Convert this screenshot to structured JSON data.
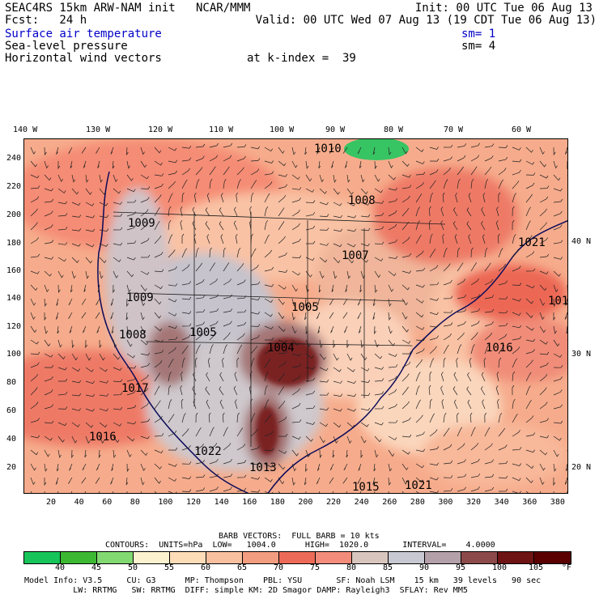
{
  "header": {
    "line1_left": "SEAC4RS 15km ARW-NAM init   NCAR/MMM",
    "line1_right": "Init: 00 UTC Tue 06 Aug 13",
    "line2_left": "Fcst:   24 h",
    "line2_right": "Valid: 00 UTC Wed 07 Aug 13 (19 CDT Tue 06 Aug 13)",
    "field1": "Surface air temperature",
    "field1_sm": "sm= 1",
    "field2": "Sea-level pressure",
    "field2_sm": "sm= 4",
    "field3": "Horizontal wind vectors",
    "field3_k": "at k-index =  39"
  },
  "axes": {
    "top_labels": [
      "140 W",
      "130 W",
      "120 W",
      "110 W",
      "100 W",
      "90 W",
      "80 W",
      "70 W",
      "60 W"
    ],
    "left_labels": [
      "240",
      "220",
      "200",
      "180",
      "160",
      "140",
      "120",
      "100",
      "80",
      "60",
      "40",
      "20"
    ],
    "right_labels": [
      "40 N",
      "30 N",
      "20 N"
    ],
    "bottom_labels": [
      "20",
      "40",
      "60",
      "80",
      "100",
      "120",
      "140",
      "160",
      "180",
      "200",
      "220",
      "240",
      "260",
      "280",
      "300",
      "320",
      "340",
      "360",
      "380"
    ]
  },
  "isobars": [
    {
      "label": "1010",
      "color": "#000"
    },
    {
      "label": "1008",
      "color": "#000"
    },
    {
      "label": "1009",
      "color": "#000"
    },
    {
      "label": "1007",
      "color": "#000"
    },
    {
      "label": "1021",
      "color": "#000"
    },
    {
      "label": "1009",
      "color": "#000"
    },
    {
      "label": "1005",
      "color": "#000"
    },
    {
      "label": "1008",
      "color": "#000"
    },
    {
      "label": "1005",
      "color": "#000"
    },
    {
      "label": "1004",
      "color": "#000"
    },
    {
      "label": "1017",
      "color": "#000"
    },
    {
      "label": "1016",
      "color": "#000"
    },
    {
      "label": "1016",
      "color": "#000"
    },
    {
      "label": "1022",
      "color": "#000"
    },
    {
      "label": "1013",
      "color": "#000"
    },
    {
      "label": "1015",
      "color": "#000"
    },
    {
      "label": "1021",
      "color": "#000"
    },
    {
      "label": "101",
      "color": "#000"
    }
  ],
  "footer": {
    "barb_vectors": "BARB VECTORS:  FULL BARB = 10 kts",
    "contours": "CONTOURS:  UNITS=hPa  LOW=   1004.0      HIGH=  1020.0       INTERVAL=    4.0000",
    "colorbar_labels": [
      "40",
      "45",
      "50",
      "55",
      "60",
      "65",
      "70",
      "75",
      "80",
      "85",
      "90",
      "95",
      "100",
      "105"
    ],
    "colorbar_unit": "°F",
    "colorbar_colors": [
      "#17c45a",
      "#3cb832",
      "#82d972",
      "#fdf2d0",
      "#fddcb8",
      "#f9c0a0",
      "#f29c80",
      "#ec6a58",
      "#f48c7c",
      "#d8c6be",
      "#c8c8d2",
      "#b4a0a8",
      "#8c4a4a",
      "#6e1414",
      "#5a0000"
    ],
    "model_line1": "Model Info: V3.5     CU: G3      MP: Thompson    PBL: YSU       SF: Noah LSM    15 km   39 levels   90 sec",
    "model_line2": "          LW: RRTMG   SW: RRTMG  DIFF: simple KM: 2D Smagor DAMP: Rayleigh3  SFLAY: Rev MM5"
  }
}
